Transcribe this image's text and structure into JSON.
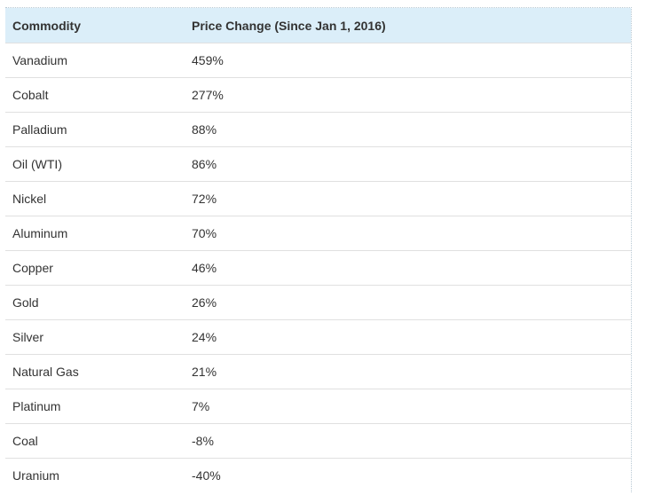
{
  "table": {
    "header": [
      "Commodity",
      "Price Change (Since Jan 1, 2016)"
    ],
    "rows": [
      [
        "Vanadium",
        "459%"
      ],
      [
        "Cobalt",
        "277%"
      ],
      [
        "Palladium",
        "88%"
      ],
      [
        "Oil (WTI)",
        "86%"
      ],
      [
        "Nickel",
        "72%"
      ],
      [
        "Aluminum",
        "70%"
      ],
      [
        "Copper",
        "46%"
      ],
      [
        "Gold",
        "26%"
      ],
      [
        "Silver",
        "24%"
      ],
      [
        "Natural Gas",
        "21%"
      ],
      [
        "Platinum",
        "7%"
      ],
      [
        "Coal",
        "-8%"
      ],
      [
        "Uranium",
        "-40%"
      ]
    ]
  }
}
